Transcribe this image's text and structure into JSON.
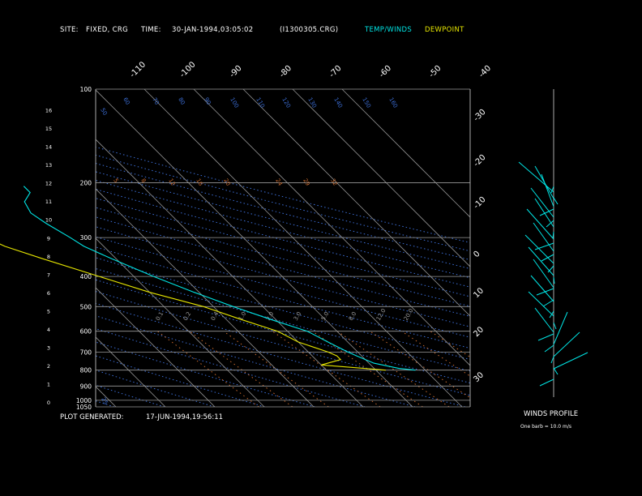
{
  "header": {
    "site_label": "SITE:",
    "site_value": "FIXED, CRG",
    "time_label": "TIME:",
    "time_value": "30-JAN-1994,03:05:02",
    "file_id": "(I1300305.CRG)",
    "legend_temp_winds": "TEMP/WINDS",
    "legend_dewpoint": "DEWPOINT"
  },
  "footer": {
    "plot_generated_label": "PLOT GENERATED:",
    "plot_generated_value": "17-JUN-1994,19:56:11",
    "winds_profile_label": "WINDS PROFILE",
    "barb_note": "One barb = 10.0 m/s"
  },
  "colors": {
    "background": "#000000",
    "temperature": "#00e5e5",
    "dewpoint": "#e5e500",
    "isotherm": "#8f8f8f",
    "dry_adiabat": "#3c6ed6",
    "moist_adiabat": "#3c6ed6",
    "mixing_ratio": "#c96a2e",
    "text": "#ffffff"
  },
  "chart_data": {
    "type": "line",
    "title": "",
    "pressure_levels": [
      "100",
      "200",
      "300",
      "400",
      "500",
      "600",
      "700",
      "800",
      "900",
      "1000",
      "1050"
    ],
    "height_labels": [
      "0",
      "1",
      "2",
      "3",
      "4",
      "5",
      "6",
      "7",
      "8",
      "9",
      "10",
      "11",
      "12",
      "13",
      "14",
      "15",
      "16"
    ],
    "top_temp_labels": [
      "-110",
      "-100",
      "-90",
      "-80",
      "-70",
      "-60",
      "-50",
      "-40"
    ],
    "right_temp_labels": [
      "-30",
      "-20",
      "-10",
      "0",
      "10",
      "20",
      "30"
    ],
    "mixing_ratio_labels": [
      "0.1",
      "0.2",
      "0.4",
      "1.0",
      "2.0",
      "3.0",
      "5.0",
      "8.0",
      "12.0",
      "20.0"
    ],
    "theta_labels": [
      "25",
      "50",
      "60",
      "70",
      "80",
      "90",
      "100",
      "110",
      "120",
      "130",
      "140",
      "150",
      "160"
    ],
    "theta_e_labels": [
      "5",
      "8",
      "12",
      "16",
      "20",
      "24",
      "29",
      "32"
    ],
    "series": [
      {
        "name": "TEMP/WINDS",
        "color": "#00e5e5",
        "points": [
          {
            "p": 1050,
            "t": null
          },
          {
            "p": 800,
            "t": -2
          },
          {
            "p": 790,
            "t": -5
          },
          {
            "p": 760,
            "t": -9
          },
          {
            "p": 720,
            "t": -11
          },
          {
            "p": 700,
            "t": -12
          },
          {
            "p": 650,
            "t": -14
          },
          {
            "p": 600,
            "t": -16
          },
          {
            "p": 550,
            "t": -21
          },
          {
            "p": 500,
            "t": -26
          },
          {
            "p": 450,
            "t": -31
          },
          {
            "p": 400,
            "t": -36
          },
          {
            "p": 350,
            "t": -41
          },
          {
            "p": 320,
            "t": -44
          },
          {
            "p": 300,
            "t": -45
          },
          {
            "p": 270,
            "t": -47
          },
          {
            "p": 250,
            "t": -48
          },
          {
            "p": 230,
            "t": -47
          },
          {
            "p": 215,
            "t": -44
          },
          {
            "p": 205,
            "t": -44
          }
        ]
      },
      {
        "name": "DEWPOINT",
        "color": "#e5e500",
        "points": [
          {
            "p": 800,
            "t": -8
          },
          {
            "p": 790,
            "t": -12
          },
          {
            "p": 770,
            "t": -20
          },
          {
            "p": 740,
            "t": -15
          },
          {
            "p": 720,
            "t": -15
          },
          {
            "p": 700,
            "t": -16
          },
          {
            "p": 650,
            "t": -20
          },
          {
            "p": 600,
            "t": -22
          },
          {
            "p": 550,
            "t": -27
          },
          {
            "p": 500,
            "t": -32
          },
          {
            "p": 450,
            "t": -40
          },
          {
            "p": 400,
            "t": -47
          },
          {
            "p": 350,
            "t": -55
          },
          {
            "p": 320,
            "t": -60
          },
          {
            "p": 300,
            "t": -62
          },
          {
            "p": 270,
            "t": -64
          },
          {
            "p": 250,
            "t": -65
          },
          {
            "p": 230,
            "t": -65
          },
          {
            "p": 210,
            "t": -63
          },
          {
            "p": 205,
            "t": -63
          }
        ]
      }
    ]
  }
}
